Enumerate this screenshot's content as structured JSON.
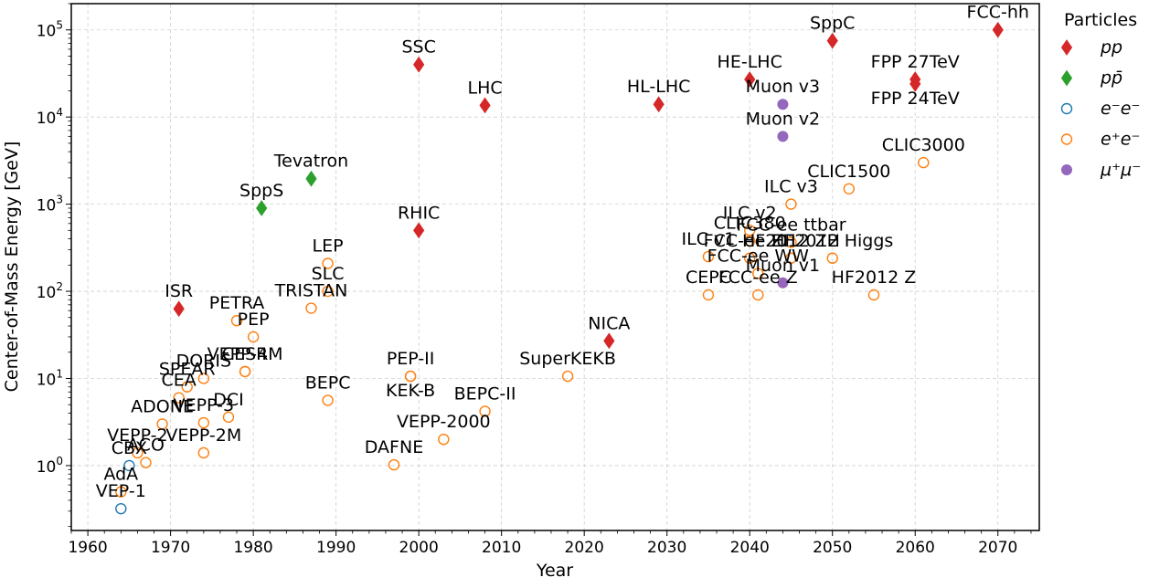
{
  "chart_data": {
    "type": "scatter",
    "xlabel": "Year",
    "ylabel": "Center-of-Mass Energy [GeV]",
    "yscale": "log",
    "xlim": [
      1958,
      2075
    ],
    "ylim": [
      0.18,
      200000
    ],
    "x_ticks": [
      1960,
      1970,
      1980,
      1990,
      2000,
      2010,
      2020,
      2030,
      2040,
      2050,
      2060,
      2070
    ],
    "y_ticks": [
      {
        "value": 1,
        "base": "10",
        "exp": "0"
      },
      {
        "value": 10,
        "base": "10",
        "exp": "1"
      },
      {
        "value": 100,
        "base": "10",
        "exp": "2"
      },
      {
        "value": 1000,
        "base": "10",
        "exp": "3"
      },
      {
        "value": 10000,
        "base": "10",
        "exp": "4"
      },
      {
        "value": 100000,
        "base": "10",
        "exp": "5"
      }
    ],
    "grid": true,
    "legend": {
      "title": "Particles",
      "position": "outside-right",
      "entries": [
        {
          "key": "pp",
          "base": "pp",
          "sup": ""
        },
        {
          "key": "ppbar",
          "base": "pp̄",
          "sup": ""
        },
        {
          "key": "ee",
          "base": "e⁻e⁻",
          "sup": ""
        },
        {
          "key": "epem",
          "base": "e⁺e⁻",
          "sup": ""
        },
        {
          "key": "mumu",
          "base": "μ⁺μ⁻",
          "sup": ""
        }
      ]
    },
    "styles": {
      "pp": {
        "marker": "diamond",
        "fill": "#d62728",
        "stroke": "#d62728"
      },
      "ppbar": {
        "marker": "diamond",
        "fill": "#2ca02c",
        "stroke": "#2ca02c"
      },
      "ee": {
        "marker": "circle-open",
        "fill": "none",
        "stroke": "#1f77b4"
      },
      "epem": {
        "marker": "circle-open",
        "fill": "none",
        "stroke": "#ff7f0e"
      },
      "mumu": {
        "marker": "circle-filled",
        "fill": "#9467bd",
        "stroke": "#9467bd"
      }
    },
    "points": [
      {
        "name": "VEP-1",
        "x": 1964,
        "y": 0.32,
        "type": "ee",
        "label": "above"
      },
      {
        "name": "AdA",
        "x": 1964,
        "y": 0.5,
        "type": "epem",
        "label": "above"
      },
      {
        "name": "CBX",
        "x": 1965,
        "y": 1.0,
        "type": "ee",
        "label": "above"
      },
      {
        "name": "VEPP-2",
        "x": 1966,
        "y": 1.4,
        "type": "epem",
        "label": "above"
      },
      {
        "name": "ACO",
        "x": 1967,
        "y": 1.08,
        "type": "epem",
        "label": "above"
      },
      {
        "name": "ADONE",
        "x": 1969,
        "y": 3.0,
        "type": "epem",
        "label": "right"
      },
      {
        "name": "CEA",
        "x": 1971,
        "y": 6.0,
        "type": "epem",
        "label": "above"
      },
      {
        "name": "ISR",
        "x": 1971,
        "y": 63,
        "type": "pp",
        "label": "above"
      },
      {
        "name": "SPEAR",
        "x": 1972,
        "y": 8.0,
        "type": "epem",
        "label": "above"
      },
      {
        "name": "DORIS",
        "x": 1974,
        "y": 10.0,
        "type": "epem",
        "label": "above"
      },
      {
        "name": "VEPP-3",
        "x": 1974,
        "y": 3.1,
        "type": "epem",
        "label": "above"
      },
      {
        "name": "VEPP-2M",
        "x": 1974,
        "y": 1.4,
        "type": "epem",
        "label": "right"
      },
      {
        "name": "DCI",
        "x": 1977,
        "y": 3.6,
        "type": "epem",
        "label": "above"
      },
      {
        "name": "PETRA",
        "x": 1978,
        "y": 46,
        "type": "epem",
        "label": "above"
      },
      {
        "name": "CESR",
        "x": 1979,
        "y": 12.0,
        "type": "epem",
        "label": "above"
      },
      {
        "name": "VEPP-4M",
        "x": 1979,
        "y": 12.0,
        "type": "epem",
        "label": "right"
      },
      {
        "name": "PEP",
        "x": 1980,
        "y": 30,
        "type": "epem",
        "label": "above"
      },
      {
        "name": "SppS",
        "x": 1981,
        "y": 900,
        "type": "ppbar",
        "label": "above"
      },
      {
        "name": "Tevatron",
        "x": 1987,
        "y": 1960,
        "type": "ppbar",
        "label": "above"
      },
      {
        "name": "TRISTAN",
        "x": 1987,
        "y": 64,
        "type": "epem",
        "label": "above"
      },
      {
        "name": "LEP",
        "x": 1989,
        "y": 209,
        "type": "epem",
        "label": "above"
      },
      {
        "name": "SLC",
        "x": 1989,
        "y": 100,
        "type": "epem",
        "label": "above"
      },
      {
        "name": "BEPC",
        "x": 1989,
        "y": 5.6,
        "type": "epem",
        "label": "above"
      },
      {
        "name": "DAFNE",
        "x": 1997,
        "y": 1.02,
        "type": "epem",
        "label": "above"
      },
      {
        "name": "PEP-II",
        "x": 1999,
        "y": 10.6,
        "type": "epem",
        "label": "above"
      },
      {
        "name": "KEK-B",
        "x": 1999,
        "y": 10.6,
        "type": "epem",
        "label": "below"
      },
      {
        "name": "SSC",
        "x": 2000,
        "y": 40000,
        "type": "pp",
        "label": "above"
      },
      {
        "name": "RHIC",
        "x": 2000,
        "y": 500,
        "type": "pp",
        "label": "above"
      },
      {
        "name": "VEPP-2000",
        "x": 2003,
        "y": 2.0,
        "type": "epem",
        "label": "above"
      },
      {
        "name": "LHC",
        "x": 2008,
        "y": 13600,
        "type": "pp",
        "label": "above"
      },
      {
        "name": "BEPC-II",
        "x": 2008,
        "y": 4.2,
        "type": "epem",
        "label": "above"
      },
      {
        "name": "SuperKEKB",
        "x": 2018,
        "y": 10.6,
        "type": "epem",
        "label": "above"
      },
      {
        "name": "NICA",
        "x": 2023,
        "y": 27,
        "type": "pp",
        "label": "above"
      },
      {
        "name": "HL-LHC",
        "x": 2029,
        "y": 14000,
        "type": "pp",
        "label": "above"
      },
      {
        "name": "ILC v1",
        "x": 2035,
        "y": 250,
        "type": "epem",
        "label": "above"
      },
      {
        "name": "CEPC",
        "x": 2035,
        "y": 91,
        "type": "epem",
        "label": "above"
      },
      {
        "name": "HE-LHC",
        "x": 2040,
        "y": 27000,
        "type": "pp",
        "label": "above"
      },
      {
        "name": "ILC v2",
        "x": 2040,
        "y": 500,
        "type": "epem",
        "label": "above"
      },
      {
        "name": "CLIC380",
        "x": 2040,
        "y": 380,
        "type": "epem",
        "label": "above"
      },
      {
        "name": "FCC-ee ZH",
        "x": 2040,
        "y": 240,
        "type": "epem",
        "label": "above"
      },
      {
        "name": "FCC-ee WW",
        "x": 2041,
        "y": 160,
        "type": "epem",
        "label": "above"
      },
      {
        "name": "FCC-ee Z",
        "x": 2041,
        "y": 91,
        "type": "epem",
        "label": "above"
      },
      {
        "name": "FCC-ee ttbar",
        "x": 2045,
        "y": 365,
        "type": "epem",
        "label": "above"
      },
      {
        "name": "ILC v3",
        "x": 2045,
        "y": 1000,
        "type": "epem",
        "label": "above"
      },
      {
        "name": "Muon v3",
        "x": 2044,
        "y": 14000,
        "type": "mumu",
        "label": "above"
      },
      {
        "name": "Muon v2",
        "x": 2044,
        "y": 6000,
        "type": "mumu",
        "label": "above"
      },
      {
        "name": "Muon v1",
        "x": 2044,
        "y": 125,
        "type": "mumu",
        "label": "above"
      },
      {
        "name": "HF2012 ZH",
        "x": 2045,
        "y": 240,
        "type": "epem",
        "label": "above"
      },
      {
        "name": "HF2012 Higgs",
        "x": 2050,
        "y": 240,
        "type": "epem",
        "label": "above"
      },
      {
        "name": "HF2012 Z",
        "x": 2055,
        "y": 91,
        "type": "epem",
        "label": "above"
      },
      {
        "name": "SppC",
        "x": 2050,
        "y": 75000,
        "type": "pp",
        "label": "above"
      },
      {
        "name": "CLIC1500",
        "x": 2052,
        "y": 1500,
        "type": "epem",
        "label": "above"
      },
      {
        "name": "FPP 27TeV",
        "x": 2060,
        "y": 27000,
        "type": "pp",
        "label": "above"
      },
      {
        "name": "FPP 24TeV",
        "x": 2060,
        "y": 24000,
        "type": "pp",
        "label": "below"
      },
      {
        "name": "CLIC3000",
        "x": 2061,
        "y": 3000,
        "type": "epem",
        "label": "above"
      },
      {
        "name": "FCC-hh",
        "x": 2070,
        "y": 100000,
        "type": "pp",
        "label": "above"
      }
    ]
  }
}
